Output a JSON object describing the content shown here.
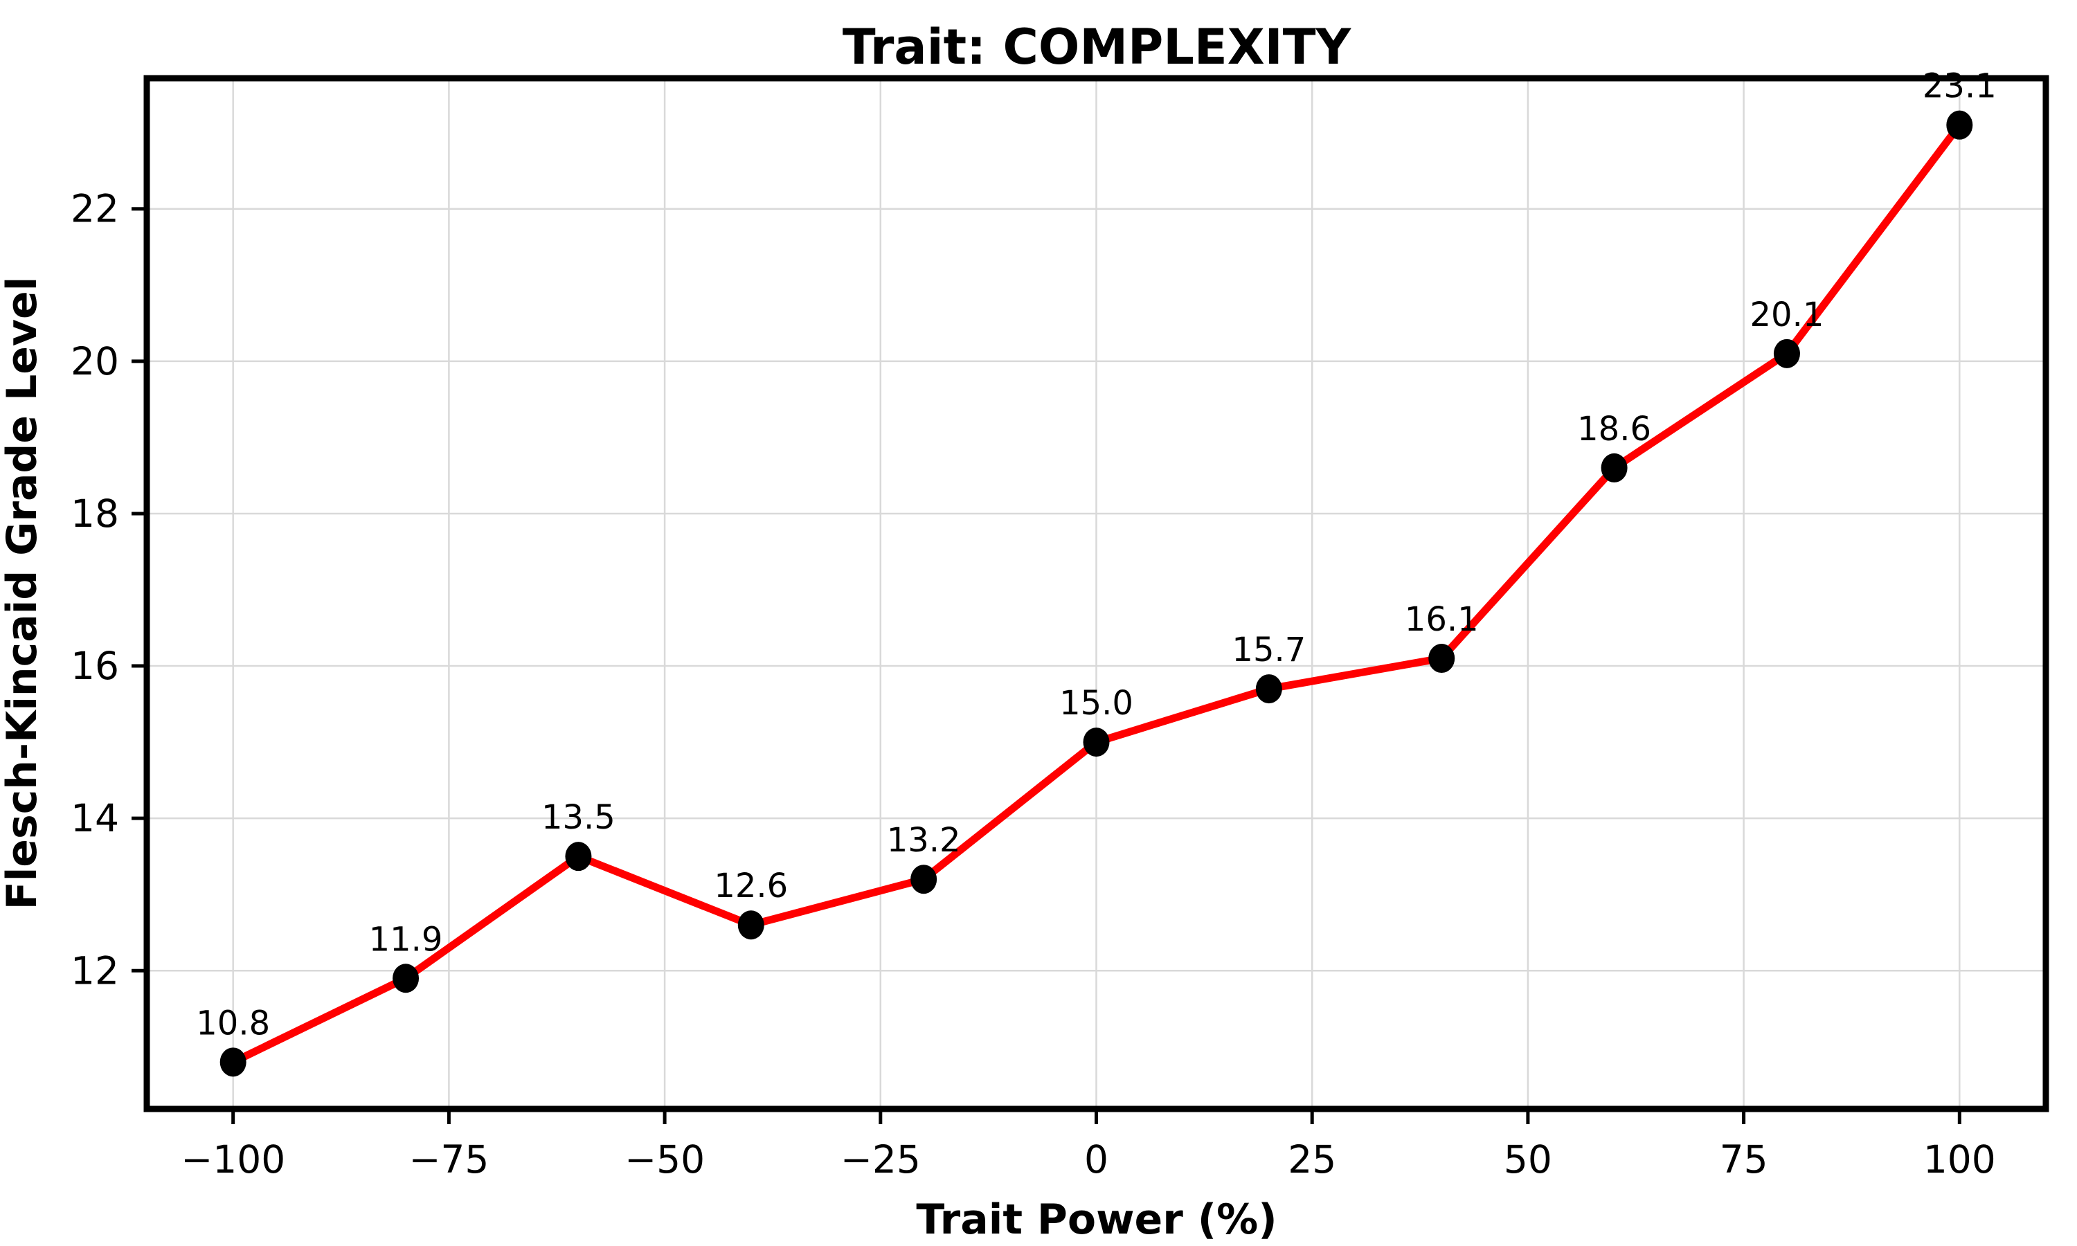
{
  "chart_data": {
    "type": "line",
    "title": "Trait: COMPLEXITY",
    "xlabel": "Trait Power (%)",
    "ylabel": "Flesch-Kincaid Grade Level",
    "x": [
      -100,
      -80,
      -60,
      -40,
      -20,
      0,
      20,
      40,
      60,
      80,
      100
    ],
    "y": [
      10.8,
      11.9,
      13.5,
      12.6,
      13.2,
      15.0,
      15.7,
      16.1,
      18.6,
      20.1,
      23.1
    ],
    "point_labels": [
      "10.8",
      "11.9",
      "13.5",
      "12.6",
      "13.2",
      "15.0",
      "15.7",
      "16.1",
      "18.6",
      "20.1",
      "23.1"
    ],
    "xlim": [
      -110,
      110
    ],
    "ylim": [
      10.185,
      23.715
    ],
    "xticks": [
      -100,
      -75,
      -50,
      -25,
      0,
      25,
      50,
      75,
      100
    ],
    "xtick_labels": [
      "−100",
      "−75",
      "−50",
      "−25",
      "0",
      "25",
      "50",
      "75",
      "100"
    ],
    "yticks": [
      12,
      14,
      16,
      18,
      20,
      22
    ],
    "ytick_labels": [
      "12",
      "14",
      "16",
      "18",
      "20",
      "22"
    ],
    "grid": true,
    "legend_position": "none",
    "line_color": "#ff0000",
    "marker_color": "#000000",
    "grid_color": "#d9d9d9",
    "spine_color": "#000000",
    "background_color": "#ffffff"
  }
}
